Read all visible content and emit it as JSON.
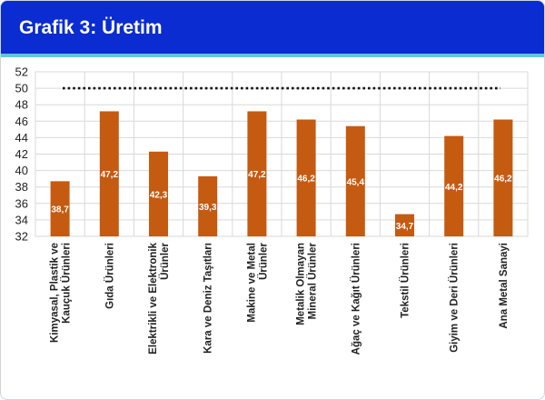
{
  "header": {
    "title": "Grafik 3: Üretim"
  },
  "colors": {
    "header_bg": "#0a2cd0",
    "header_accent": "#5ec7d8",
    "bar": "#c55a11",
    "reference_line": "#111111"
  },
  "chart_data": {
    "type": "bar",
    "title": "",
    "xlabel": "",
    "ylabel": "",
    "ylim": [
      32,
      52
    ],
    "yticks": [
      32,
      34,
      36,
      38,
      40,
      42,
      44,
      46,
      48,
      50,
      52
    ],
    "grid": true,
    "categories": [
      [
        "Kimyasal, Plastik ve",
        "Kauçuk Ürünleri"
      ],
      [
        "Gıda Ürünleri"
      ],
      [
        "Elektrikli ve Elektronik",
        "Ürünler"
      ],
      [
        "Kara ve Deniz Taşıtları"
      ],
      [
        "Makine ve Metal",
        "Ürünler"
      ],
      [
        "Metalik Olmayan",
        "Mineral Ürünler"
      ],
      [
        "Ağaç ve Kağıt Ürünleri"
      ],
      [
        "Tekstil Ürünleri"
      ],
      [
        "Giyim ve Deri Ürünleri"
      ],
      [
        "Ana Metal Sanayi"
      ]
    ],
    "values": [
      38.7,
      47.2,
      42.3,
      39.3,
      47.2,
      46.2,
      45.4,
      34.7,
      44.2,
      46.2
    ],
    "data_labels": [
      "38,7",
      "47,2",
      "42,3",
      "39,3",
      "47,2",
      "46,2",
      "45,4",
      "34,7",
      "44,2",
      "46,2"
    ],
    "reference_line": {
      "value": 50,
      "style": "dotted"
    }
  }
}
